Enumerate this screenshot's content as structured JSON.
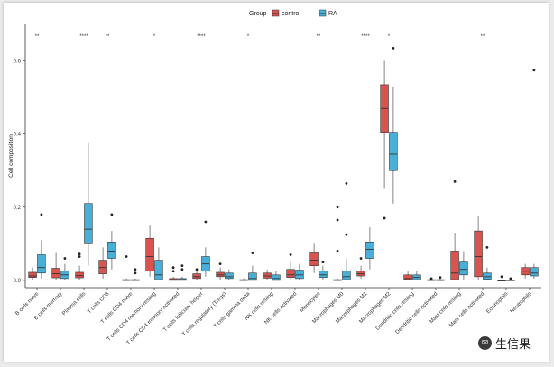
{
  "legend": {
    "title": "Group",
    "items": [
      {
        "label": "control",
        "color": "#d9534f"
      },
      {
        "label": "RA",
        "color": "#48b0d8"
      }
    ]
  },
  "watermark": {
    "icon": "wechat-icon",
    "text": "生信果"
  },
  "chart_data": {
    "type": "box",
    "xlabel": "",
    "ylabel": "Cell composition",
    "ylim": [
      -0.02,
      0.7
    ],
    "yticks": [
      0.0,
      0.2,
      0.4,
      0.6
    ],
    "ytick_labels": [
      "0.0",
      "0.2",
      "0.4",
      "0.6"
    ],
    "grid": false,
    "legend_position": "top",
    "categories": [
      "B cells naive",
      "B cells memory",
      "Plasma cells",
      "T cells CD8",
      "T cells CD4 naive",
      "T cells CD4 memory resting",
      "T cells CD4 memory activated",
      "T cells follicular helper",
      "T cells regulatory (Tregs)",
      "T cells gamma delta",
      "NK cells resting",
      "NK cells activated",
      "Monocytes",
      "Macrophages M0",
      "Macrophages M1",
      "Macrophages M2",
      "Dendritic cells resting",
      "Dendritic cells activated",
      "Mast cells resting",
      "Mast cells activated",
      "Eosinophils",
      "Neutrophils"
    ],
    "significance": [
      "**",
      "",
      "****",
      "**",
      "",
      "*",
      "",
      "****",
      "",
      "*",
      "",
      "",
      "**",
      "",
      "****",
      "*",
      "",
      "",
      "",
      "**",
      "",
      ""
    ],
    "series": [
      {
        "name": "control",
        "color": "#d9534f",
        "boxes": [
          {
            "min": 0.0,
            "q1": 0.008,
            "median": 0.012,
            "q3": 0.022,
            "max": 0.035,
            "outliers": []
          },
          {
            "min": 0.0,
            "q1": 0.007,
            "median": 0.018,
            "q3": 0.033,
            "max": 0.075,
            "outliers": []
          },
          {
            "min": 0.0,
            "q1": 0.007,
            "median": 0.013,
            "q3": 0.022,
            "max": 0.04,
            "outliers": [
              0.065,
              0.072
            ]
          },
          {
            "min": 0.005,
            "q1": 0.018,
            "median": 0.035,
            "q3": 0.055,
            "max": 0.09,
            "outliers": []
          },
          {
            "min": 0.0,
            "q1": 0.0,
            "median": 0.0,
            "q3": 0.002,
            "max": 0.005,
            "outliers": [
              0.065
            ]
          },
          {
            "min": 0.01,
            "q1": 0.025,
            "median": 0.065,
            "q3": 0.115,
            "max": 0.15,
            "outliers": []
          },
          {
            "min": 0.0,
            "q1": 0.0,
            "median": 0.002,
            "q3": 0.005,
            "max": 0.01,
            "outliers": [
              0.025,
              0.035
            ]
          },
          {
            "min": 0.0,
            "q1": 0.005,
            "median": 0.01,
            "q3": 0.018,
            "max": 0.03,
            "outliers": [
              0.03
            ]
          },
          {
            "min": 0.0,
            "q1": 0.01,
            "median": 0.015,
            "q3": 0.022,
            "max": 0.035,
            "outliers": [
              0.045
            ]
          },
          {
            "min": 0.0,
            "q1": 0.0,
            "median": 0.0,
            "q3": 0.002,
            "max": 0.005,
            "outliers": []
          },
          {
            "min": 0.0,
            "q1": 0.006,
            "median": 0.012,
            "q3": 0.02,
            "max": 0.03,
            "outliers": []
          },
          {
            "min": 0.0,
            "q1": 0.008,
            "median": 0.015,
            "q3": 0.03,
            "max": 0.05,
            "outliers": [
              0.07
            ]
          },
          {
            "min": 0.02,
            "q1": 0.04,
            "median": 0.055,
            "q3": 0.075,
            "max": 0.1,
            "outliers": []
          },
          {
            "min": 0.0,
            "q1": 0.0,
            "median": 0.0,
            "q3": 0.002,
            "max": 0.005,
            "outliers": [
              0.08,
              0.165,
              0.2
            ]
          },
          {
            "min": 0.005,
            "q1": 0.012,
            "median": 0.018,
            "q3": 0.025,
            "max": 0.04,
            "outliers": [
              0.06
            ]
          },
          {
            "min": 0.25,
            "q1": 0.405,
            "median": 0.47,
            "q3": 0.535,
            "max": 0.6,
            "outliers": [
              0.17
            ]
          },
          {
            "min": 0.0,
            "q1": 0.002,
            "median": 0.005,
            "q3": 0.015,
            "max": 0.025,
            "outliers": []
          },
          {
            "min": 0.0,
            "q1": 0.0,
            "median": 0.0,
            "q3": 0.002,
            "max": 0.005,
            "outliers": [
              0.005
            ]
          },
          {
            "min": 0.0,
            "q1": 0.002,
            "median": 0.02,
            "q3": 0.08,
            "max": 0.13,
            "outliers": [
              0.27
            ]
          },
          {
            "min": 0.0,
            "q1": 0.01,
            "median": 0.065,
            "q3": 0.135,
            "max": 0.175,
            "outliers": []
          },
          {
            "min": 0.0,
            "q1": 0.0,
            "median": 0.0,
            "q3": 0.0,
            "max": 0.002,
            "outliers": [
              0.01
            ]
          },
          {
            "min": 0.005,
            "q1": 0.015,
            "median": 0.025,
            "q3": 0.035,
            "max": 0.045,
            "outliers": []
          }
        ]
      },
      {
        "name": "RA",
        "color": "#48b0d8",
        "boxes": [
          {
            "min": 0.005,
            "q1": 0.02,
            "median": 0.035,
            "q3": 0.07,
            "max": 0.11,
            "outliers": [
              0.18
            ]
          },
          {
            "min": 0.0,
            "q1": 0.005,
            "median": 0.015,
            "q3": 0.025,
            "max": 0.045,
            "outliers": [
              0.06
            ]
          },
          {
            "min": 0.04,
            "q1": 0.1,
            "median": 0.14,
            "q3": 0.21,
            "max": 0.375,
            "outliers": []
          },
          {
            "min": 0.03,
            "q1": 0.06,
            "median": 0.08,
            "q3": 0.105,
            "max": 0.135,
            "outliers": [
              0.18
            ]
          },
          {
            "min": 0.0,
            "q1": 0.0,
            "median": 0.0,
            "q3": 0.002,
            "max": 0.005,
            "outliers": [
              0.02,
              0.03
            ]
          },
          {
            "min": 0.0,
            "q1": 0.002,
            "median": 0.015,
            "q3": 0.055,
            "max": 0.09,
            "outliers": []
          },
          {
            "min": 0.0,
            "q1": 0.0,
            "median": 0.002,
            "q3": 0.005,
            "max": 0.01,
            "outliers": [
              0.03,
              0.04
            ]
          },
          {
            "min": 0.01,
            "q1": 0.025,
            "median": 0.045,
            "q3": 0.065,
            "max": 0.09,
            "outliers": [
              0.16
            ]
          },
          {
            "min": 0.0,
            "q1": 0.005,
            "median": 0.01,
            "q3": 0.02,
            "max": 0.03,
            "outliers": []
          },
          {
            "min": 0.0,
            "q1": 0.0,
            "median": 0.005,
            "q3": 0.02,
            "max": 0.04,
            "outliers": [
              0.075
            ]
          },
          {
            "min": 0.0,
            "q1": 0.0,
            "median": 0.005,
            "q3": 0.015,
            "max": 0.025,
            "outliers": []
          },
          {
            "min": 0.0,
            "q1": 0.005,
            "median": 0.015,
            "q3": 0.028,
            "max": 0.045,
            "outliers": []
          },
          {
            "min": 0.0,
            "q1": 0.008,
            "median": 0.015,
            "q3": 0.025,
            "max": 0.04,
            "outliers": [
              0.05
            ]
          },
          {
            "min": 0.0,
            "q1": 0.002,
            "median": 0.01,
            "q3": 0.025,
            "max": 0.06,
            "outliers": [
              0.125,
              0.265
            ]
          },
          {
            "min": 0.03,
            "q1": 0.06,
            "median": 0.085,
            "q3": 0.105,
            "max": 0.145,
            "outliers": []
          },
          {
            "min": 0.21,
            "q1": 0.3,
            "median": 0.345,
            "q3": 0.405,
            "max": 0.53,
            "outliers": [
              0.635
            ]
          },
          {
            "min": 0.0,
            "q1": 0.002,
            "median": 0.008,
            "q3": 0.015,
            "max": 0.025,
            "outliers": []
          },
          {
            "min": 0.0,
            "q1": 0.0,
            "median": 0.0,
            "q3": 0.002,
            "max": 0.005,
            "outliers": [
              0.008
            ]
          },
          {
            "min": 0.0,
            "q1": 0.015,
            "median": 0.03,
            "q3": 0.05,
            "max": 0.08,
            "outliers": []
          },
          {
            "min": 0.0,
            "q1": 0.003,
            "median": 0.01,
            "q3": 0.02,
            "max": 0.035,
            "outliers": [
              0.09
            ]
          },
          {
            "min": 0.0,
            "q1": 0.0,
            "median": 0.0,
            "q3": 0.001,
            "max": 0.002,
            "outliers": [
              0.005
            ]
          },
          {
            "min": 0.005,
            "q1": 0.012,
            "median": 0.02,
            "q3": 0.035,
            "max": 0.045,
            "outliers": [
              0.575
            ]
          }
        ]
      }
    ]
  }
}
